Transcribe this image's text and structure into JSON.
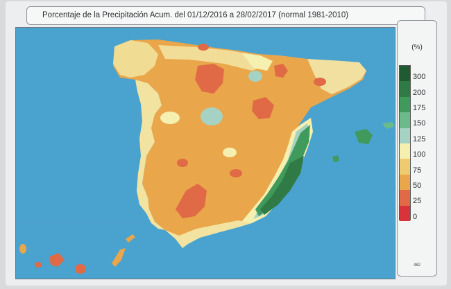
{
  "title": "Porcentaje de la Precipitación Acum. del 01/12/2016 a 28/02/2017  (normal 1981-2010)",
  "legend": {
    "unit": "(%)",
    "code": "482",
    "ticks": [
      "300",
      "200",
      "175",
      "150",
      "125",
      "100",
      "75",
      "50",
      "25",
      "0"
    ],
    "colors": [
      "#1f5a33",
      "#2f7a45",
      "#3f9a5c",
      "#6bbb8a",
      "#a6d2c4",
      "#f5efb0",
      "#eecb70",
      "#e9a64a",
      "#e06a45",
      "#d8323a"
    ]
  },
  "map": {
    "sea_color": "#4aa3cf",
    "land_base_color": "#e9a64a",
    "regions": [
      "galicia",
      "cantabrian-coast",
      "basque-country",
      "navarra-ebro",
      "catalonia",
      "castilla-leon",
      "aragon",
      "madrid",
      "extremadura",
      "castilla-la-mancha",
      "valencia",
      "murcia",
      "andalusia",
      "portugal",
      "balearic-islands",
      "canary-islands"
    ]
  }
}
